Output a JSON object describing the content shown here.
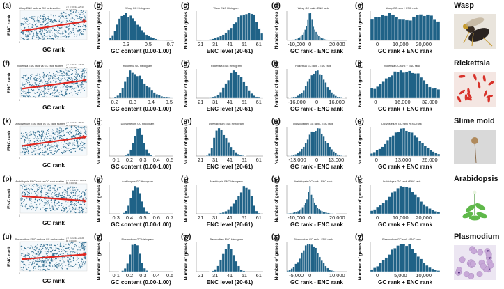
{
  "organisms": [
    {
      "name": "Wasp",
      "panels": {
        "scatter": {
          "letter": "(a)",
          "title": "Wasp ENC rank vs GC rank scatter",
          "equation": [
            "y = 0.7074x + 2917",
            "R² = 0.2027"
          ],
          "xlabel": "GC rank",
          "ylabel": "ENC rank",
          "fit": [
            0.3,
            0.62
          ]
        },
        "gc": {
          "letter": "(b)",
          "title": "Wasp GC Histogram",
          "xlabel": "GC content (0.00-1.00)",
          "ylabel": "Number of genes (N)",
          "range": [
            0.15,
            0.72
          ],
          "ticks": [
            0.3,
            0.5,
            0.7
          ],
          "dist": "skewR",
          "center": 0.28,
          "spread": 0.08,
          "n": 28
        },
        "enc": {
          "letter": "(c)",
          "title": "Wasp ENC Histogram",
          "xlabel": "ENC level (20-61)",
          "ylabel": "Number of genes (N)",
          "range": [
            18,
            64
          ],
          "ticks": [
            21,
            31,
            41,
            51,
            61
          ],
          "dist": "skewL",
          "center": 55,
          "spread": 7,
          "n": 26
        },
        "diff": {
          "letter": "(d)",
          "title": "Wasp GC rank - ENC rank",
          "xlabel": "GC rank - ENC rank",
          "ylabel": "Number of genes (N)",
          "range": [
            -17000,
            27000
          ],
          "ticks": [
            -10000,
            0,
            20000
          ],
          "tickLabels": [
            "-10,000",
            "0",
            "20,000"
          ],
          "dist": "peak",
          "center": 0,
          "spread": 4500,
          "n": 44
        },
        "sum": {
          "letter": "(e)",
          "title": "Wasp GC rank + ENC rank",
          "xlabel": "GC rank + ENC rank",
          "ylabel": "Number of genes (N)",
          "range": [
            -3000,
            27000
          ],
          "ticks": [
            0,
            10000,
            20000
          ],
          "tickLabels": [
            "0",
            "10,000",
            "20,000"
          ],
          "dist": "flat",
          "center": 12000,
          "spread": 0,
          "n": 20
        }
      }
    },
    {
      "name": "Rickettsia",
      "panels": {
        "scatter": {
          "letter": "(f)",
          "title": "Rickettsia ENC rank vs GC rank scatter",
          "equation": [
            "y = 0.4912x + 4521",
            "R² = 0.1204"
          ],
          "xlabel": "GC rank",
          "ylabel": "ENC rank",
          "fit": [
            0.3,
            0.58
          ]
        },
        "gc": {
          "letter": "(g)",
          "title": "Rickettsia GC Histogram",
          "xlabel": "GC content (0.00-1.00)",
          "ylabel": "Number of genes (N)",
          "range": [
            0.17,
            0.52
          ],
          "ticks": [
            0.2,
            0.3,
            0.4,
            0.5
          ],
          "dist": "skewR",
          "center": 0.29,
          "spread": 0.05,
          "n": 26
        },
        "enc": {
          "letter": "(h)",
          "title": "Rickettsia ENC Histogram",
          "xlabel": "ENC level (20-61)",
          "ylabel": "Number of genes (N)",
          "range": [
            18,
            64
          ],
          "ticks": [
            21,
            31,
            41,
            51,
            61
          ],
          "dist": "normal",
          "center": 45,
          "spread": 6,
          "n": 26
        },
        "diff": {
          "letter": "(i)",
          "title": "Rickettsia GC rank - ENC rank",
          "xlabel": "GC rank - ENC rank",
          "ylabel": "Number of genes (N)",
          "range": [
            -24000,
            24000
          ],
          "ticks": [
            -16000,
            0,
            16000
          ],
          "tickLabels": [
            "-16,000",
            "0",
            "16,000"
          ],
          "dist": "normal",
          "center": 0,
          "spread": 7000,
          "n": 30
        },
        "sum": {
          "letter": "(j)",
          "title": "Rickettsia GC rank + ENC rank",
          "xlabel": "GC rank + ENC rank",
          "ylabel": "Number of genes (N)",
          "range": [
            -3000,
            38000
          ],
          "ticks": [
            0,
            16000,
            32000
          ],
          "tickLabels": [
            "0",
            "16,000",
            "32,000"
          ],
          "dist": "plateau",
          "center": 17000,
          "spread": 9000,
          "n": 24
        }
      }
    },
    {
      "name": "Slime mold",
      "panels": {
        "scatter": {
          "letter": "(k)",
          "title": "Dictyostelium ENC rank vs GC rank scatter",
          "equation": [
            "y = 0.3312x + 8823",
            "R² = 0.0903"
          ],
          "xlabel": "GC rank",
          "ylabel": "ENC rank",
          "fit": [
            0.32,
            0.62
          ]
        },
        "gc": {
          "letter": "(l)",
          "title": "Dictyostelium GC Histogram",
          "xlabel": "GC content (0.00-1.00)",
          "ylabel": "Number of genes (N)",
          "range": [
            0.05,
            0.52
          ],
          "ticks": [
            0.1,
            0.2,
            0.3,
            0.4,
            0.5
          ],
          "dist": "normal",
          "center": 0.27,
          "spread": 0.035,
          "n": 28
        },
        "enc": {
          "letter": "(m)",
          "title": "Dictyostelium ENC Histogram",
          "xlabel": "ENC level (20-61)",
          "ylabel": "Number of genes (N)",
          "range": [
            18,
            64
          ],
          "ticks": [
            21,
            31,
            41,
            51,
            61
          ],
          "dist": "skewR",
          "center": 33,
          "spread": 4,
          "n": 28
        },
        "diff": {
          "letter": "(n)",
          "title": "Dictyostelium GC rank - ENC rank",
          "xlabel": "GC rank - ENC rank",
          "ylabel": "Number of genes (N)",
          "range": [
            -20000,
            20000
          ],
          "ticks": [
            -13000,
            0,
            13000
          ],
          "tickLabels": [
            "-13,000",
            "0",
            "13,000"
          ],
          "dist": "normal",
          "center": 0,
          "spread": 6000,
          "n": 30
        },
        "sum": {
          "letter": "(o)",
          "title": "Dictyostelium GC rank +ENC rank",
          "xlabel": "GC rank + ENC rank",
          "ylabel": "Number of genes (N)",
          "range": [
            -3000,
            31000
          ],
          "ticks": [
            0,
            13000,
            26000
          ],
          "tickLabels": [
            "0",
            "13,000",
            "26,000"
          ],
          "dist": "normal",
          "center": 13500,
          "spread": 7500,
          "n": 26
        }
      }
    },
    {
      "name": "Arabidopsis",
      "panels": {
        "scatter": {
          "letter": "(p)",
          "title": "Arabidopsis ENC rank vs GC rank scatter",
          "equation": [
            "y = -0.1421x + 14023",
            "R² = 0.0211"
          ],
          "xlabel": "GC rank",
          "ylabel": "ENC rank",
          "fit": [
            0.58,
            0.42
          ]
        },
        "gc": {
          "letter": "(q)",
          "title": "Arabidopsis GC Histogram",
          "xlabel": "GC content (0.00-1.00)",
          "ylabel": "Number of genes (N)",
          "range": [
            0.25,
            0.72
          ],
          "ticks": [
            0.3,
            0.4,
            0.5,
            0.6,
            0.7
          ],
          "dist": "normal",
          "center": 0.45,
          "spread": 0.035,
          "n": 28
        },
        "enc": {
          "letter": "(r)",
          "title": "Arabidopsis ENC Histogram",
          "xlabel": "ENC level (20-61)",
          "ylabel": "Number of genes (N)",
          "range": [
            18,
            64
          ],
          "ticks": [
            21,
            31,
            41,
            51,
            61
          ],
          "dist": "skewL",
          "center": 53,
          "spread": 4.5,
          "n": 26
        },
        "diff": {
          "letter": "(s)",
          "title": "Arabidopsis GC rank - ENC rank",
          "xlabel": "GC rank - ENC rank",
          "ylabel": "Number of genes (N)",
          "range": [
            -17000,
            27000
          ],
          "ticks": [
            -10000,
            0,
            20000
          ],
          "tickLabels": [
            "-10,000",
            "0",
            "20,000"
          ],
          "dist": "peak",
          "center": 0,
          "spread": 5000,
          "n": 40
        },
        "sum": {
          "letter": "(t)",
          "title": "Arabidopsis GC rank +ENC rank",
          "xlabel": "GC rank + ENC rank",
          "ylabel": "Number of genes (N)",
          "range": [
            -3000,
            27000
          ],
          "ticks": [
            0,
            10000,
            20000
          ],
          "tickLabels": [
            "0",
            "10,000",
            "20,000"
          ],
          "dist": "normal",
          "center": 11000,
          "spread": 6500,
          "n": 24
        }
      }
    },
    {
      "name": "Plasmodium",
      "panels": {
        "scatter": {
          "letter": "(u)",
          "title": "Plasmodium ENC rank vs GC rank scatter",
          "equation": [
            "y = 0.2143x + 4121",
            "R² = 0.0467"
          ],
          "xlabel": "GC rank",
          "ylabel": "ENC rank",
          "fit": [
            0.4,
            0.56
          ]
        },
        "gc": {
          "letter": "(v)",
          "title": "Plasmodium GC Histogram",
          "xlabel": "GC content (0.00-1.00)",
          "ylabel": "Number of genes (N)",
          "range": [
            0.05,
            0.52
          ],
          "ticks": [
            0.1,
            0.2,
            0.3,
            0.4,
            0.5
          ],
          "dist": "normal",
          "center": 0.24,
          "spread": 0.035,
          "n": 26
        },
        "enc": {
          "letter": "(w)",
          "title": "Plasmodium ENC Histogram",
          "xlabel": "ENC level (20-61)",
          "ylabel": "Number of genes (N)",
          "range": [
            18,
            64
          ],
          "ticks": [
            21,
            31,
            41,
            51,
            61
          ],
          "dist": "normal",
          "center": 40,
          "spread": 4,
          "n": 26
        },
        "diff": {
          "letter": "(x)",
          "title": "Plasmodium GC rank - ENC rank",
          "xlabel": "GC rank - ENC rank",
          "ylabel": "Number of genes (N)",
          "range": [
            -8500,
            13500
          ],
          "ticks": [
            -5000,
            0,
            10000
          ],
          "tickLabels": [
            "-5,000",
            "0",
            "10,000"
          ],
          "dist": "normal",
          "center": 0,
          "spread": 3200,
          "n": 30
        },
        "sum": {
          "letter": "(y)",
          "title": "Plasmodium GC rank +ENC rank",
          "xlabel": "GC rank + ENC rank",
          "ylabel": "Number of genes (N)",
          "range": [
            -1500,
            13500
          ],
          "ticks": [
            0,
            5000,
            10000
          ],
          "tickLabels": [
            "0",
            "5,000",
            "10,000"
          ],
          "dist": "normal",
          "center": 5500,
          "spread": 3000,
          "n": 24
        }
      }
    }
  ],
  "chart_data": {
    "type": "bar",
    "description_rows": [
      "Wasp",
      "Rickettsia",
      "Slime mold",
      "Arabidopsis",
      "Plasmodium"
    ],
    "columns": [
      "scatter",
      "GC Histogram",
      "ENC Histogram",
      "GC rank - ENC rank",
      "GC rank + ENC rank"
    ]
  },
  "colors": {
    "bar": "#1f6287",
    "scatter": "#1f6287",
    "fit": "#e0261f"
  }
}
